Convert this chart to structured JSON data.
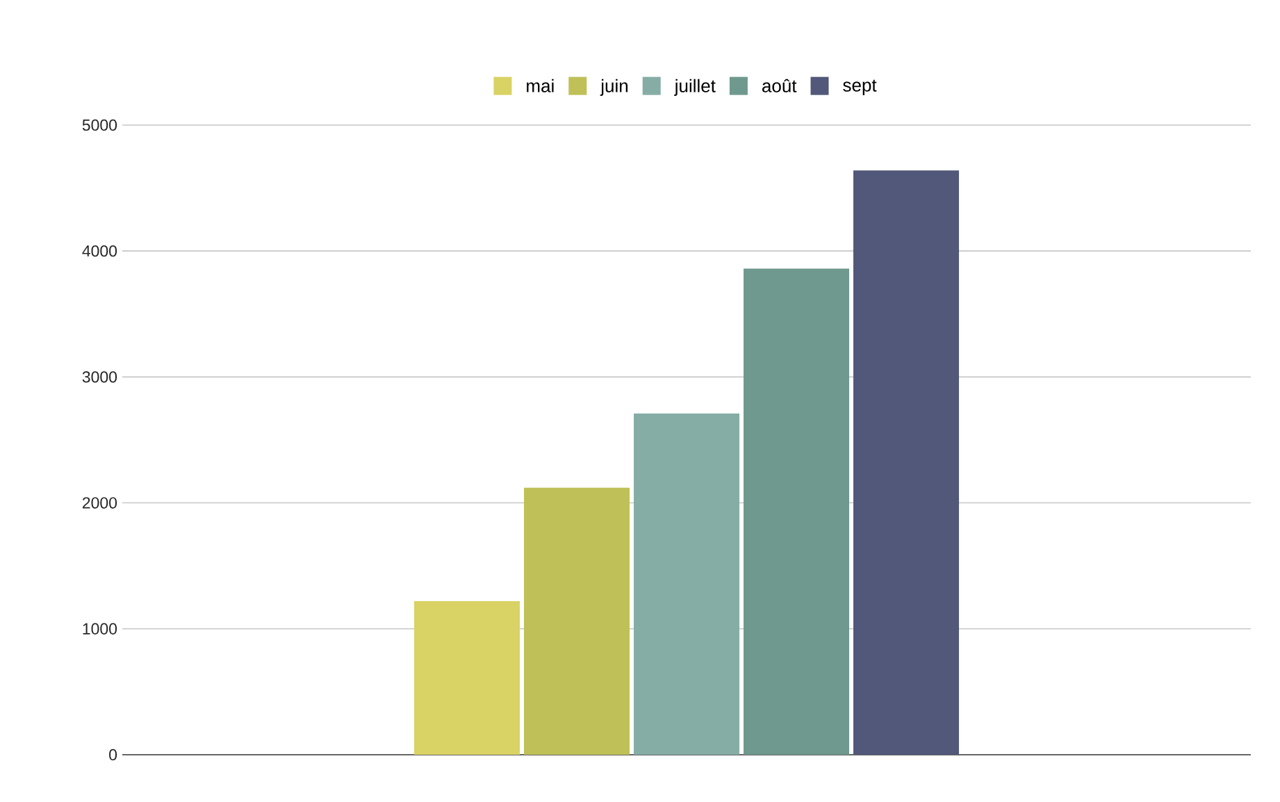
{
  "chart_data": {
    "type": "bar",
    "categories": [
      null
    ],
    "series": [
      {
        "name": "mai",
        "color": "#d9d265",
        "values": [
          1220
        ]
      },
      {
        "name": "juin",
        "color": "#bfc057",
        "values": [
          2120
        ]
      },
      {
        "name": "juillet",
        "color": "#85ada5",
        "values": [
          2710
        ]
      },
      {
        "name": "août",
        "color": "#6f998e",
        "values": [
          3860
        ]
      },
      {
        "name": "sept",
        "color": "#515879",
        "values": [
          4640
        ]
      }
    ],
    "ylim": [
      0,
      5000
    ],
    "yticks": [
      0,
      1000,
      2000,
      3000,
      4000,
      5000
    ],
    "grid": "y",
    "legend": "top"
  }
}
